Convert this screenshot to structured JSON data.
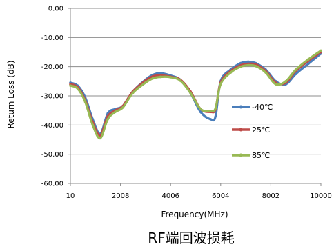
{
  "chart_data": {
    "type": "line",
    "title": "RF端回波损耗",
    "xlabel": "Frequency(MHz)",
    "ylabel": "Return Loss (dB)",
    "xlim": [
      10,
      10000
    ],
    "ylim": [
      -60,
      0
    ],
    "x_ticks": [
      10,
      2008,
      4006,
      6004,
      8002,
      10000
    ],
    "x_tick_labels": [
      "10",
      "2008",
      "4006",
      "6004",
      "8002",
      "10000"
    ],
    "y_ticks": [
      0,
      -10,
      -20,
      -30,
      -40,
      -50,
      -60
    ],
    "y_tick_labels": [
      "0.00",
      "-10.00",
      "-20.00",
      "-30.00",
      "-40.00",
      "-50.00",
      "-60.00"
    ],
    "grid": "horizontal",
    "legend_position": "right",
    "series": [
      {
        "name": "-40℃",
        "color": "#4a7ebb",
        "x": [
          10,
          300,
          600,
          900,
          1200,
          1500,
          1800,
          2100,
          2500,
          3000,
          3300,
          3600,
          4000,
          4400,
          4800,
          5200,
          5600,
          5800,
          6000,
          6400,
          6800,
          7100,
          7400,
          7800,
          8200,
          8600,
          9000,
          9500,
          10000
        ],
        "values": [
          -25.5,
          -26.5,
          -30.5,
          -38,
          -43,
          -36,
          -34.5,
          -33.5,
          -28.5,
          -24.5,
          -22.8,
          -22.2,
          -23,
          -24.5,
          -29,
          -35.5,
          -38,
          -37,
          -25,
          -21,
          -18.8,
          -18.3,
          -18.8,
          -21,
          -25,
          -26,
          -22.5,
          -19,
          -15.5
        ]
      },
      {
        "name": "25℃",
        "color": "#be4b48",
        "x": [
          10,
          300,
          600,
          900,
          1200,
          1500,
          1800,
          2100,
          2500,
          3000,
          3300,
          3600,
          4000,
          4400,
          4800,
          5200,
          5600,
          5800,
          6000,
          6400,
          6800,
          7100,
          7400,
          7800,
          8200,
          8600,
          9000,
          9500,
          10000
        ],
        "values": [
          -26,
          -27,
          -31.5,
          -39,
          -43.5,
          -37,
          -35,
          -33.5,
          -28.5,
          -24.8,
          -23.3,
          -23,
          -23.4,
          -24.5,
          -28.5,
          -34.5,
          -35.5,
          -34.5,
          -25.5,
          -21.5,
          -19.5,
          -19,
          -19.2,
          -21.5,
          -25.5,
          -25.5,
          -21.5,
          -18,
          -15
        ]
      },
      {
        "name": "85℃",
        "color": "#98b954",
        "x": [
          10,
          300,
          600,
          900,
          1200,
          1500,
          1800,
          2100,
          2500,
          3000,
          3300,
          3600,
          4000,
          4400,
          4800,
          5200,
          5600,
          5800,
          6000,
          6400,
          6800,
          7100,
          7400,
          7800,
          8200,
          8600,
          9000,
          9500,
          10000
        ],
        "values": [
          -26.5,
          -27.5,
          -32,
          -40,
          -44.5,
          -38,
          -35.5,
          -34,
          -29,
          -25.5,
          -24,
          -23.5,
          -23.6,
          -24.8,
          -29,
          -34.5,
          -35.2,
          -34.2,
          -26,
          -22,
          -20,
          -19.5,
          -19.8,
          -22,
          -26,
          -25,
          -21,
          -17.5,
          -14.5
        ]
      }
    ]
  }
}
